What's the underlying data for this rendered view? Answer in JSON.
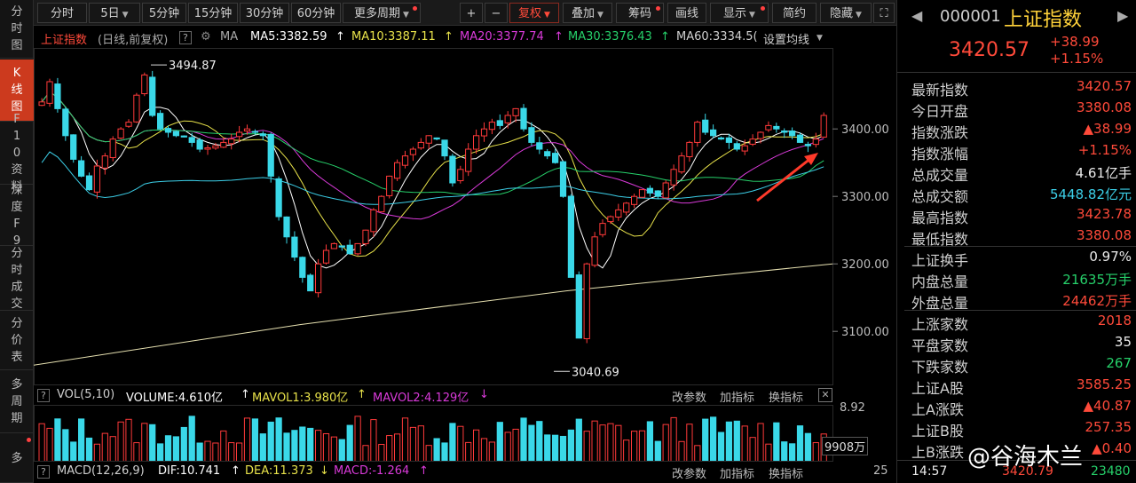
{
  "left_tabs": [
    {
      "label": "分时图",
      "active": false
    },
    {
      "label": "K线图",
      "active": true
    },
    {
      "label": "F10资料",
      "active": false
    },
    {
      "label": "深度F9",
      "active": false
    },
    {
      "label": "分时成交",
      "active": false
    },
    {
      "label": "分价表",
      "active": false
    },
    {
      "label": "多周期",
      "active": false
    },
    {
      "label": "多",
      "active": false
    }
  ],
  "toolbar": {
    "periods": [
      "分时",
      "5日",
      "5分钟",
      "15分钟",
      "30分钟",
      "60分钟",
      "更多周期"
    ],
    "zoom_in": "+",
    "zoom_out": "−",
    "fuquan": "复权",
    "overlay": "叠加",
    "chips": "筹码",
    "draw": "画线",
    "display": "显示",
    "simple": "简约",
    "hide": "隐藏",
    "expand_icon": "expand-icon"
  },
  "ma_legend": {
    "title": "上证指数",
    "subtitle": "(日线,前复权)",
    "help": "?",
    "ma_label": "MA",
    "ma5": "MA5:3382.59",
    "ma10": "MA10:3387.11",
    "ma20": "MA20:3377.74",
    "ma30": "MA30:3376.43",
    "ma60": "MA60:3334.5(",
    "set_ma": "设置均线",
    "colors": {
      "ma5": "#ffffff",
      "ma10": "#e8e24a",
      "ma20": "#d93ad9",
      "ma30": "#26d06a",
      "ma60": "#3ccfe8"
    }
  },
  "chart_data": {
    "type": "candlestick",
    "title": "上证指数",
    "y_ticks": [
      "3400.00",
      "3300.00",
      "3200.00",
      "3100.00"
    ],
    "ylim": [
      3020,
      3520
    ],
    "annotations": [
      {
        "label": "3494.87",
        "value": 3494.87
      },
      {
        "label": "3040.69",
        "value": 3040.69
      }
    ],
    "close_trace": [
      3440,
      3470,
      3430,
      3390,
      3355,
      3330,
      3310,
      3345,
      3360,
      3385,
      3400,
      3410,
      3450,
      3480,
      3420,
      3400,
      3395,
      3390,
      3388,
      3380,
      3370,
      3372,
      3375,
      3380,
      3385,
      3395,
      3400,
      3395,
      3390,
      3330,
      3270,
      3240,
      3210,
      3180,
      3160,
      3200,
      3220,
      3230,
      3225,
      3215,
      3230,
      3250,
      3280,
      3300,
      3330,
      3350,
      3360,
      3370,
      3380,
      3390,
      3385,
      3360,
      3320,
      3340,
      3370,
      3390,
      3400,
      3410,
      3405,
      3420,
      3430,
      3400,
      3380,
      3370,
      3360,
      3350,
      3300,
      3180,
      3090,
      3200,
      3240,
      3260,
      3270,
      3280,
      3290,
      3300,
      3310,
      3305,
      3300,
      3320,
      3340,
      3360,
      3380,
      3410,
      3395,
      3390,
      3385,
      3380,
      3370,
      3375,
      3385,
      3395,
      3405,
      3400,
      3395,
      3390,
      3380,
      3375,
      3385,
      3420
    ]
  },
  "volume_header": {
    "name": "VOL(5,10)",
    "volume": "VOLUME:4.610亿",
    "mavol1": "MAVOL1:3.980亿",
    "mavol2": "MAVOL2:4.129亿",
    "change_param": "改参数",
    "add_indicator": "加指标",
    "switch_indicator": "换指标",
    "y_top": "8.92",
    "y_cur": "9908万"
  },
  "macd_header": {
    "name": "MACD(12,26,9)",
    "dif": "DIF:10.741",
    "dea": "DEA:11.373",
    "macd": "MACD:-1.264",
    "change_param": "改参数",
    "add_indicator": "加指标",
    "switch_indicator": "换指标",
    "y_top": "25"
  },
  "right_panel": {
    "code": "000001",
    "name": "上证指数",
    "price": "3420.57",
    "change": "+38.99",
    "change_pct": "+1.15%",
    "rows": [
      {
        "label": "最新指数",
        "value": "3420.57",
        "color": "red"
      },
      {
        "label": "今日开盘",
        "value": "3380.08",
        "color": "red"
      },
      {
        "label": "指数涨跌",
        "value": "▲38.99",
        "color": "red"
      },
      {
        "label": "指数涨幅",
        "value": "+1.15%",
        "color": "red"
      },
      {
        "label": "总成交量",
        "value": "4.61亿手",
        "color": "white"
      },
      {
        "label": "总成交额",
        "value": "5448.82亿元",
        "color": "cyan"
      },
      {
        "label": "最高指数",
        "value": "3423.78",
        "color": "red"
      },
      {
        "label": "最低指数",
        "value": "3380.08",
        "color": "red"
      },
      {
        "label": "上证换手",
        "value": "0.97%",
        "color": "white"
      },
      {
        "label": "内盘总量",
        "value": "21635万手",
        "color": "green"
      },
      {
        "label": "外盘总量",
        "value": "24462万手",
        "color": "red"
      },
      {
        "label": "上涨家数",
        "value": "2018",
        "color": "red"
      },
      {
        "label": "平盘家数",
        "value": "35",
        "color": "white"
      },
      {
        "label": "下跌家数",
        "value": "267",
        "color": "green"
      },
      {
        "label": "上证A股",
        "value": "3585.25",
        "color": "red"
      },
      {
        "label": "上A涨跌",
        "value": "▲40.87",
        "color": "red"
      },
      {
        "label": "上证B股",
        "value": "257.35",
        "color": "red"
      },
      {
        "label": "上B涨跌",
        "value": "▲0.40",
        "color": "red"
      }
    ],
    "time": "14:57",
    "last_price": "3420.79",
    "last_vol": "23480"
  },
  "watermark": "@谷海木兰"
}
